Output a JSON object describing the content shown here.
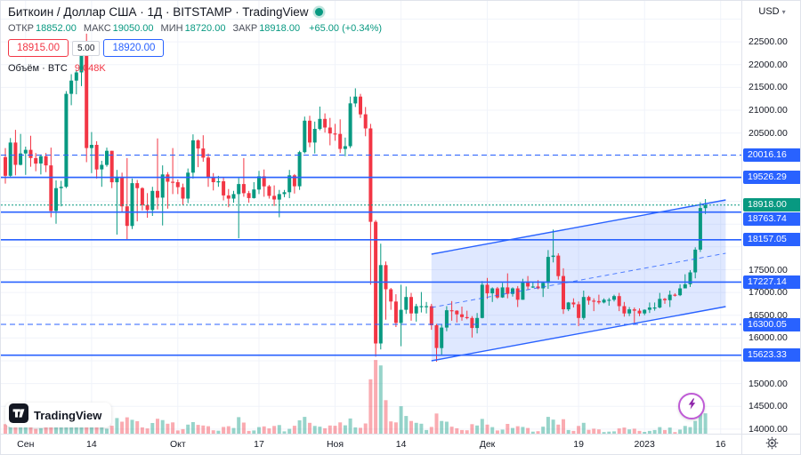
{
  "header": {
    "title": "Биткоин / Доллар США · 1Д · BITSTAMP · TradingView",
    "ohlc": {
      "open_label": "ОТКР",
      "open_value": "18852.00",
      "high_label": "МАКС",
      "high_value": "19050.00",
      "low_label": "МИН",
      "low_value": "18720.00",
      "close_label": "ЗАКР",
      "close_value": "18918.00",
      "change": "+65.00 (+0.34%)"
    },
    "trade_panel": {
      "sell_price": "18915.00",
      "spread": "5.00",
      "buy_price": "18920.00"
    },
    "volume_row": {
      "label": "Объём · BTC",
      "value": "9.048K"
    }
  },
  "price_axis": {
    "currency_label": "USD",
    "chevron_down": "▾"
  },
  "footer": {
    "logo_text": "TradingView"
  },
  "chart_data": {
    "type": "candlestick",
    "title": "Биткоин / Доллар США, 1Д, BITSTAMP",
    "price_range": [
      13900,
      23400
    ],
    "x_origin": 5,
    "x_step": 5.7,
    "vol_scale": 2.55,
    "colors": {
      "up": "#089981",
      "down": "#f23645",
      "vol_up": "rgba(8,153,129,0.42)",
      "vol_down": "rgba(242,54,69,0.42)",
      "grid": "#f0f3fa",
      "level": "#2962ff",
      "channel_fill": "rgba(41,98,255,0.15)"
    },
    "y_ticks": [
      "22500.00",
      "22000.00",
      "21500.00",
      "21000.00",
      "20500.00",
      "17500.00",
      "17000.00",
      "16500.00",
      "16000.00",
      "15000.00",
      "14500.00",
      "14000.00"
    ],
    "levels": [
      {
        "price": 20016.16,
        "style": "dashed"
      },
      {
        "price": 19526.29,
        "style": "solid"
      },
      {
        "price": 18763.74,
        "style": "solid"
      },
      {
        "price": 18157.05,
        "style": "solid"
      },
      {
        "price": 17227.14,
        "style": "solid"
      },
      {
        "price": 16300.05,
        "style": "dashed"
      },
      {
        "price": 15623.33,
        "style": "solid"
      }
    ],
    "last_price": 18918.0,
    "channel": {
      "i1": 84,
      "i2": 142,
      "lower": [
        15500,
        16690
      ],
      "upper": [
        17840,
        19030
      ]
    },
    "x_labels": [
      {
        "t": "Сен",
        "i": 4
      },
      {
        "t": "14",
        "i": 17
      },
      {
        "t": "Окт",
        "i": 34
      },
      {
        "t": "17",
        "i": 50
      },
      {
        "t": "Ноя",
        "i": 65
      },
      {
        "t": "14",
        "i": 78
      },
      {
        "t": "Дек",
        "i": 95
      },
      {
        "t": "19",
        "i": 113
      },
      {
        "t": "2023",
        "i": 126
      },
      {
        "t": "16",
        "i": 141
      }
    ],
    "candles": [
      [
        19970,
        20170,
        19390,
        19560,
        4.2
      ],
      [
        19560,
        20390,
        19540,
        20290,
        5.1
      ],
      [
        20290,
        20570,
        19570,
        19800,
        5.8
      ],
      [
        19800,
        20480,
        19790,
        20050,
        4.6
      ],
      [
        20050,
        20200,
        19580,
        20130,
        4.8
      ],
      [
        20130,
        20440,
        19760,
        19950,
        4.3
      ],
      [
        19950,
        20060,
        19660,
        19830,
        2.1
      ],
      [
        19830,
        20030,
        19590,
        19990,
        2.4
      ],
      [
        19990,
        20060,
        19640,
        19790,
        3.4
      ],
      [
        19790,
        20180,
        18650,
        18790,
        7.6
      ],
      [
        18790,
        19460,
        18510,
        19290,
        6.8
      ],
      [
        19290,
        19450,
        18890,
        19320,
        4.9
      ],
      [
        19320,
        21420,
        19290,
        21360,
        8.9
      ],
      [
        21360,
        21790,
        21110,
        21650,
        4.1
      ],
      [
        21650,
        21880,
        21350,
        21830,
        3.2
      ],
      [
        21830,
        22480,
        21530,
        22390,
        5.4
      ],
      [
        22390,
        22680,
        19860,
        20170,
        10.2
      ],
      [
        20170,
        20520,
        19620,
        20240,
        6.5
      ],
      [
        20240,
        20320,
        19500,
        19700,
        5.2
      ],
      [
        19700,
        19890,
        19320,
        19800,
        4.4
      ],
      [
        19800,
        20180,
        19760,
        20110,
        2.2
      ],
      [
        20110,
        20110,
        19290,
        19420,
        3.5
      ],
      [
        19420,
        19690,
        18270,
        19540,
        6.9
      ],
      [
        19540,
        19630,
        18750,
        18890,
        5.3
      ],
      [
        18890,
        19950,
        18150,
        18460,
        7.2
      ],
      [
        18460,
        19500,
        18390,
        19400,
        6.1
      ],
      [
        19400,
        19470,
        18560,
        19290,
        5.5
      ],
      [
        19290,
        19310,
        18800,
        18920,
        2.8
      ],
      [
        18920,
        19180,
        18640,
        18810,
        2.3
      ],
      [
        18810,
        19320,
        18680,
        19230,
        4.7
      ],
      [
        19230,
        20380,
        18820,
        19080,
        6.6
      ],
      [
        19080,
        19790,
        18470,
        19590,
        6.0
      ],
      [
        19590,
        19640,
        18840,
        19430,
        4.4
      ],
      [
        19430,
        20170,
        19160,
        19420,
        5.0
      ],
      [
        19420,
        19480,
        19160,
        19310,
        1.4
      ],
      [
        19310,
        19390,
        18920,
        19060,
        2.0
      ],
      [
        19060,
        19720,
        18960,
        19630,
        4.0
      ],
      [
        19630,
        20470,
        19500,
        20340,
        5.1
      ],
      [
        20340,
        20360,
        19750,
        20160,
        3.9
      ],
      [
        20160,
        20450,
        19870,
        19960,
        3.6
      ],
      [
        19960,
        20050,
        19320,
        19530,
        3.3
      ],
      [
        19530,
        19620,
        19240,
        19420,
        1.5
      ],
      [
        19420,
        19560,
        19320,
        19440,
        1.3
      ],
      [
        19440,
        19530,
        19020,
        19130,
        3.0
      ],
      [
        19130,
        19270,
        18870,
        19060,
        3.3
      ],
      [
        19060,
        19230,
        18970,
        19160,
        2.5
      ],
      [
        19160,
        19510,
        18190,
        19380,
        7.3
      ],
      [
        19380,
        19950,
        19100,
        19180,
        4.9
      ],
      [
        19180,
        19230,
        18970,
        19070,
        1.2
      ],
      [
        19070,
        19420,
        19060,
        19260,
        1.4
      ],
      [
        19260,
        19670,
        19160,
        19550,
        2.9
      ],
      [
        19550,
        19700,
        19100,
        19330,
        3.2
      ],
      [
        19330,
        19360,
        19060,
        19120,
        2.3
      ],
      [
        19120,
        19350,
        18900,
        19040,
        3.4
      ],
      [
        19040,
        19250,
        18650,
        19160,
        3.8
      ],
      [
        19160,
        19250,
        19090,
        19200,
        1.0
      ],
      [
        19200,
        19690,
        19070,
        19570,
        2.1
      ],
      [
        19570,
        19600,
        19170,
        19330,
        3.5
      ],
      [
        19330,
        20110,
        19250,
        20080,
        5.9
      ],
      [
        20080,
        20860,
        20050,
        20770,
        7.4
      ],
      [
        20770,
        20880,
        20190,
        20290,
        4.8
      ],
      [
        20290,
        20750,
        20050,
        20590,
        3.4
      ],
      [
        20590,
        21080,
        20560,
        20810,
        3.1
      ],
      [
        20810,
        20930,
        20510,
        20620,
        2.4
      ],
      [
        20620,
        20830,
        20230,
        20490,
        3.6
      ],
      [
        20490,
        20700,
        20330,
        20480,
        3.5
      ],
      [
        20480,
        20800,
        20060,
        20150,
        5.0
      ],
      [
        20150,
        20400,
        19990,
        20210,
        3.7
      ],
      [
        20210,
        21300,
        20170,
        21150,
        6.7
      ],
      [
        21150,
        21480,
        21070,
        21300,
        2.8
      ],
      [
        21300,
        21360,
        20830,
        20910,
        2.6
      ],
      [
        20910,
        21070,
        20430,
        20600,
        4.5
      ],
      [
        20600,
        20700,
        17170,
        18550,
        24.0
      ],
      [
        18550,
        18590,
        15590,
        15880,
        32.5
      ],
      [
        15880,
        18070,
        15750,
        17600,
        30.1
      ],
      [
        17600,
        17680,
        16400,
        17070,
        14.8
      ],
      [
        17070,
        17100,
        16620,
        16800,
        5.4
      ],
      [
        16800,
        16960,
        16240,
        16330,
        5.0
      ],
      [
        16330,
        17170,
        15820,
        16620,
        12.1
      ],
      [
        16620,
        17130,
        16530,
        16900,
        7.8
      ],
      [
        16900,
        16990,
        16380,
        16540,
        5.6
      ],
      [
        16540,
        16750,
        16360,
        16700,
        4.8
      ],
      [
        16700,
        17010,
        16560,
        16700,
        4.4
      ],
      [
        16700,
        16790,
        16540,
        16700,
        1.6
      ],
      [
        16700,
        16750,
        16180,
        16280,
        3.0
      ],
      [
        16280,
        16310,
        15480,
        15780,
        8.9
      ],
      [
        15780,
        16290,
        15620,
        16230,
        5.6
      ],
      [
        16230,
        16700,
        16150,
        16610,
        5.3
      ],
      [
        16610,
        16810,
        16380,
        16600,
        3.1
      ],
      [
        16600,
        16610,
        16340,
        16520,
        2.4
      ],
      [
        16520,
        16690,
        16380,
        16460,
        1.6
      ],
      [
        16460,
        16600,
        16410,
        16440,
        1.5
      ],
      [
        16440,
        16480,
        16010,
        16220,
        4.2
      ],
      [
        16220,
        16550,
        16100,
        16440,
        3.6
      ],
      [
        16440,
        17250,
        16430,
        17170,
        6.5
      ],
      [
        17170,
        17320,
        16860,
        16980,
        4.0
      ],
      [
        16980,
        17110,
        16790,
        17090,
        2.9
      ],
      [
        17090,
        17120,
        16860,
        16890,
        1.4
      ],
      [
        16890,
        17210,
        16880,
        17110,
        1.8
      ],
      [
        17110,
        17420,
        16870,
        16970,
        4.3
      ],
      [
        16970,
        17110,
        16910,
        17090,
        2.5
      ],
      [
        17090,
        17140,
        16680,
        16840,
        3.3
      ],
      [
        16840,
        17300,
        16840,
        17230,
        3.0
      ],
      [
        17230,
        17360,
        17060,
        17130,
        2.5
      ],
      [
        17130,
        17230,
        17100,
        17130,
        0.9
      ],
      [
        17130,
        17270,
        17070,
        17090,
        1.1
      ],
      [
        17090,
        17240,
        16900,
        17210,
        3.1
      ],
      [
        17210,
        17930,
        17080,
        17780,
        7.4
      ],
      [
        17780,
        18380,
        17660,
        17810,
        6.2
      ],
      [
        17810,
        17860,
        17280,
        17360,
        4.0
      ],
      [
        17360,
        17530,
        16530,
        16630,
        6.4
      ],
      [
        16630,
        16790,
        16590,
        16780,
        1.6
      ],
      [
        16780,
        16870,
        16670,
        16740,
        1.2
      ],
      [
        16740,
        16800,
        16260,
        16440,
        3.4
      ],
      [
        16440,
        17040,
        16400,
        16900,
        4.8
      ],
      [
        16900,
        16930,
        16730,
        16820,
        1.7
      ],
      [
        16820,
        16870,
        16590,
        16810,
        2.2
      ],
      [
        16810,
        16950,
        16740,
        16780,
        1.9
      ],
      [
        16780,
        16870,
        16760,
        16840,
        0.7
      ],
      [
        16840,
        16880,
        16710,
        16840,
        0.9
      ],
      [
        16840,
        16950,
        16800,
        16920,
        1.0
      ],
      [
        16920,
        16990,
        16590,
        16700,
        2.3
      ],
      [
        16700,
        16790,
        16470,
        16540,
        2.7
      ],
      [
        16540,
        16680,
        16480,
        16630,
        1.9
      ],
      [
        16630,
        16670,
        16330,
        16600,
        2.2
      ],
      [
        16600,
        16650,
        16480,
        16540,
        1.2
      ],
      [
        16540,
        16630,
        16500,
        16620,
        0.8
      ],
      [
        16620,
        16780,
        16550,
        16670,
        1.2
      ],
      [
        16670,
        16780,
        16600,
        16670,
        1.6
      ],
      [
        16670,
        16990,
        16650,
        16860,
        2.9
      ],
      [
        16860,
        16880,
        16750,
        16830,
        1.6
      ],
      [
        16830,
        17040,
        16680,
        16950,
        2.7
      ],
      [
        16950,
        16980,
        16910,
        16940,
        0.7
      ],
      [
        16940,
        17180,
        16920,
        17090,
        1.8
      ],
      [
        17090,
        17400,
        17090,
        17180,
        3.4
      ],
      [
        17180,
        17490,
        17120,
        17440,
        2.9
      ],
      [
        17440,
        17990,
        17310,
        17940,
        5.6
      ],
      [
        17940,
        18980,
        17890,
        18853,
        11.2
      ],
      [
        18852,
        19050,
        18720,
        18918,
        9.0
      ]
    ]
  }
}
